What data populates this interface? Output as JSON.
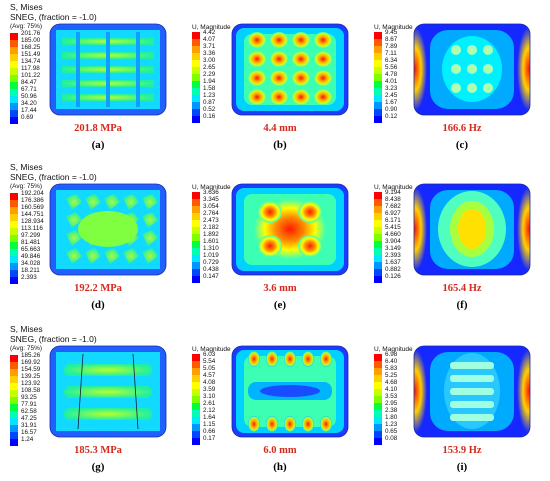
{
  "panels": [
    {
      "id": "a",
      "header": [
        "S, Mises",
        "SNEG, (fraction = -1.0)",
        "(Avg: 75%)"
      ],
      "legend": [
        "201.76",
        "185.00",
        "168.25",
        "151.49",
        "134.74",
        "117.98",
        "101.22",
        "84.47",
        "67.71",
        "50.96",
        "34.20",
        "17.44",
        "0.69"
      ],
      "result": "201.8 MPa",
      "label": "(a)",
      "type": "stress1"
    },
    {
      "id": "b",
      "header": [
        "U, Magnitude"
      ],
      "legend": [
        "4.42",
        "4.07",
        "3.71",
        "3.36",
        "3.00",
        "2.65",
        "2.29",
        "1.94",
        "1.58",
        "1.23",
        "0.87",
        "0.52",
        "0.16"
      ],
      "result": "4.4 mm",
      "label": "(b)",
      "type": "disp1"
    },
    {
      "id": "c",
      "header": [
        "U, Magnitude"
      ],
      "legend": [
        "9.45",
        "8.67",
        "7.89",
        "7.11",
        "6.34",
        "5.56",
        "4.78",
        "4.01",
        "3.23",
        "2.45",
        "1.67",
        "0.90",
        "0.12"
      ],
      "result": "166.6 Hz",
      "label": "(c)",
      "type": "mode1"
    },
    {
      "id": "d",
      "header": [
        "S, Mises",
        "SNEG, (fraction = -1.0)",
        "(Avg: 75%)"
      ],
      "legend": [
        "192.204",
        "176.386",
        "160.569",
        "144.751",
        "128.934",
        "113.116",
        "97.299",
        "81.481",
        "65.663",
        "49.846",
        "34.028",
        "18.211",
        "2.393"
      ],
      "result": "192.2 MPa",
      "label": "(d)",
      "type": "stress2"
    },
    {
      "id": "e",
      "header": [
        "U, Magnitude"
      ],
      "legend": [
        "3.636",
        "3.345",
        "3.054",
        "2.764",
        "2.473",
        "2.182",
        "1.892",
        "1.601",
        "1.310",
        "1.019",
        "0.729",
        "0.438",
        "0.147"
      ],
      "result": "3.6 mm",
      "label": "(e)",
      "type": "disp2"
    },
    {
      "id": "f",
      "header": [
        "U, Magnitude"
      ],
      "legend": [
        "9.194",
        "8.438",
        "7.682",
        "6.927",
        "6.171",
        "5.415",
        "4.660",
        "3.904",
        "3.149",
        "2.393",
        "1.637",
        "0.882",
        "0.126"
      ],
      "result": "165.4 Hz",
      "label": "(f)",
      "type": "mode2"
    },
    {
      "id": "g",
      "header": [
        "S, Mises",
        "SNEG, (fraction = -1.0)",
        "(Avg: 75%)"
      ],
      "legend": [
        "185.26",
        "169.92",
        "154.59",
        "139.25",
        "123.92",
        "108.58",
        "93.25",
        "77.91",
        "62.58",
        "47.25",
        "31.91",
        "16.57",
        "1.24"
      ],
      "result": "185.3 MPa",
      "label": "(g)",
      "type": "stress3"
    },
    {
      "id": "h",
      "header": [
        "U, Magnitude"
      ],
      "legend": [
        "6.03",
        "5.54",
        "5.05",
        "4.57",
        "4.08",
        "3.59",
        "3.10",
        "2.61",
        "2.12",
        "1.64",
        "1.15",
        "0.66",
        "0.17"
      ],
      "result": "6.0 mm",
      "label": "(h)",
      "type": "disp3"
    },
    {
      "id": "i",
      "header": [
        "U, Magnitude"
      ],
      "legend": [
        "6.98",
        "6.40",
        "5.83",
        "5.25",
        "4.68",
        "4.10",
        "3.53",
        "2.95",
        "2.38",
        "1.80",
        "1.23",
        "0.65",
        "0.08"
      ],
      "result": "153.9 Hz",
      "label": "(i)",
      "type": "mode3"
    }
  ],
  "colors": {
    "scale": [
      "#ff0000",
      "#ff5a00",
      "#ff9e00",
      "#ffd000",
      "#ffff00",
      "#c8ff00",
      "#7dff00",
      "#00ff3c",
      "#00ffb4",
      "#00e6ff",
      "#0096ff",
      "#0046ff",
      "#0000ff"
    ],
    "result_text": "#d42a1c"
  }
}
